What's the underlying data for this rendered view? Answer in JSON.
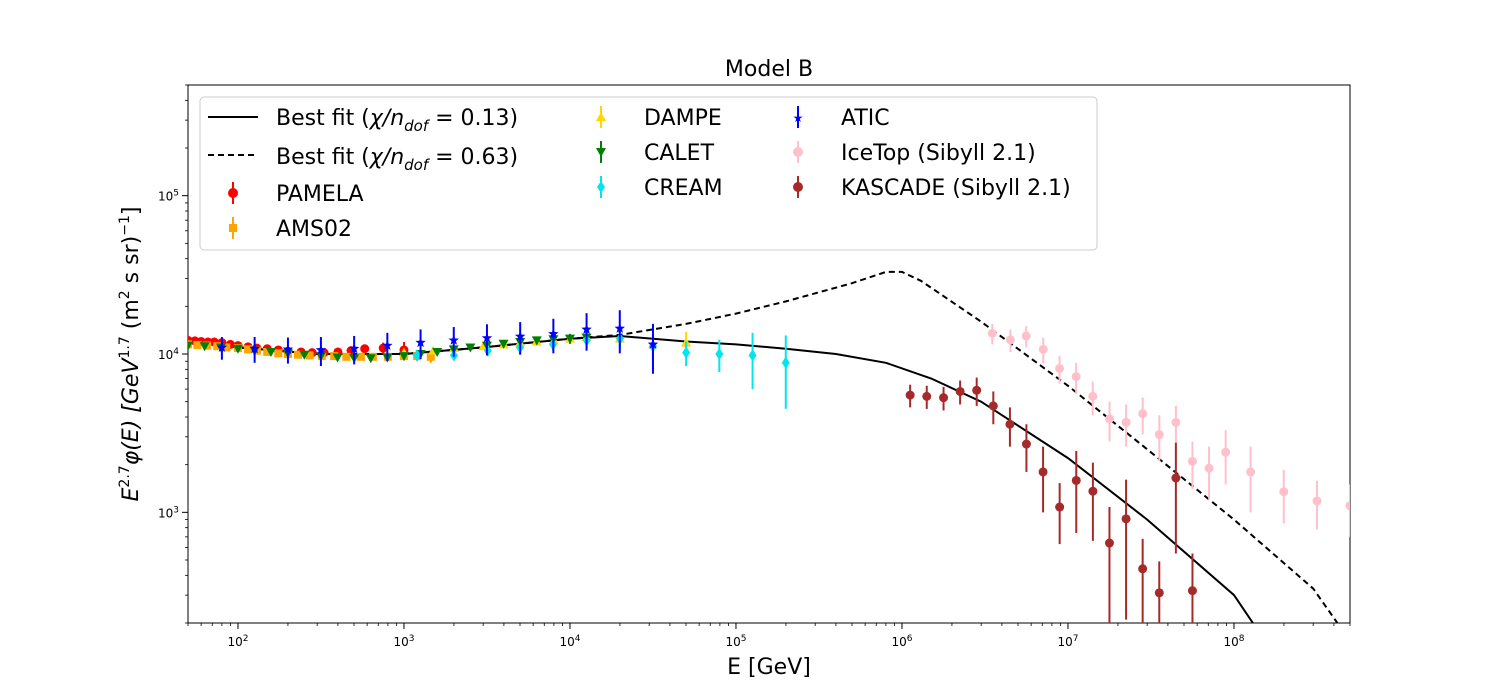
{
  "chart_data": {
    "type": "scatter",
    "title": "Model B",
    "xlabel": "E [GeV]",
    "ylabel": "E^{2.7}φ(E) [GeV^{1.7} (m² s sr)^{-1}]",
    "xscale": "log",
    "yscale": "log",
    "xlim": [
      50,
      500000000
    ],
    "ylim": [
      200,
      500000
    ],
    "x_tick_labels": [
      {
        "value": 100,
        "base": "10",
        "exp": "2"
      },
      {
        "value": 1000,
        "base": "10",
        "exp": "3"
      },
      {
        "value": 10000,
        "base": "10",
        "exp": "4"
      },
      {
        "value": 100000,
        "base": "10",
        "exp": "5"
      },
      {
        "value": 1000000,
        "base": "10",
        "exp": "6"
      },
      {
        "value": 10000000,
        "base": "10",
        "exp": "7"
      },
      {
        "value": 100000000,
        "base": "10",
        "exp": "8"
      }
    ],
    "y_tick_labels": [
      {
        "value": 1000,
        "base": "10",
        "exp": "3"
      },
      {
        "value": 10000,
        "base": "10",
        "exp": "4"
      },
      {
        "value": 100000,
        "base": "10",
        "exp": "5"
      }
    ],
    "legend_position": "upper-left, three columns",
    "curves": [
      {
        "name": "Best fit (χ/n_dof = 0.13)",
        "style": "solid",
        "color": "#000000",
        "x": [
          50,
          100,
          300,
          1000,
          3000,
          10000,
          20000,
          50000,
          100000,
          200000,
          400000,
          800000,
          1500000,
          3000000,
          10000000,
          30000000,
          100000000,
          130000000
        ],
        "y": [
          12000,
          11000,
          10000,
          10000,
          11000,
          12500,
          13000,
          12000,
          11500,
          10800,
          10000,
          8800,
          7000,
          5000,
          2200,
          900,
          300,
          200
        ]
      },
      {
        "name": "Best fit (χ/n_dof = 0.63)",
        "style": "dashed",
        "color": "#000000",
        "x": [
          50,
          100,
          300,
          1000,
          3000,
          10000,
          20000,
          50000,
          100000,
          200000,
          500000,
          800000,
          1000000,
          1300000,
          3000000,
          10000000,
          30000000,
          100000000,
          300000000,
          420000000
        ],
        "y": [
          12000,
          11000,
          10000,
          10000,
          11000,
          12500,
          13200,
          15500,
          18000,
          21500,
          28000,
          33000,
          33000,
          29000,
          16000,
          6300,
          2500,
          900,
          330,
          200
        ]
      }
    ],
    "series": [
      {
        "name": "PAMELA",
        "marker": "circle",
        "color": "#ff0000",
        "x": [
          50,
          55,
          60,
          66,
          72,
          80,
          90,
          100,
          115,
          130,
          150,
          175,
          200,
          240,
          280,
          330,
          400,
          480,
          580,
          750,
          1000
        ],
        "y": [
          12200,
          12100,
          12000,
          11900,
          11900,
          11800,
          11500,
          11300,
          11100,
          10900,
          10800,
          10600,
          10400,
          10300,
          10200,
          10200,
          10300,
          10500,
          10800,
          10900,
          10600
        ],
        "err": [
          500,
          500,
          500,
          500,
          500,
          500,
          500,
          500,
          500,
          500,
          500,
          500,
          500,
          500,
          500,
          500,
          500,
          600,
          700,
          900,
          1300
        ]
      },
      {
        "name": "AMS02",
        "marker": "square",
        "color": "#ffa500",
        "x": [
          50,
          57,
          65,
          75,
          85,
          100,
          115,
          130,
          150,
          175,
          200,
          230,
          270,
          320,
          380,
          450,
          550,
          650,
          800,
          1000,
          1200,
          1450
        ],
        "y": [
          11500,
          11400,
          11300,
          11200,
          11000,
          10900,
          10700,
          10500,
          10300,
          10100,
          10000,
          9900,
          9800,
          9700,
          9700,
          9600,
          9600,
          9600,
          9600,
          9700,
          9700,
          9600
        ],
        "err": [
          300,
          300,
          300,
          300,
          300,
          300,
          300,
          300,
          300,
          300,
          300,
          300,
          300,
          300,
          300,
          400,
          400,
          500,
          500,
          600,
          700,
          800
        ]
      },
      {
        "name": "DAMPE",
        "marker": "triangle-up",
        "color": "#ffd700",
        "x": [
          1000,
          1500,
          2000,
          3000,
          4000,
          5000,
          6300,
          8000,
          10000,
          12600,
          20000,
          31600,
          50100
        ],
        "y": [
          10200,
          10500,
          10900,
          11200,
          11500,
          11800,
          12000,
          12200,
          12500,
          12800,
          12500,
          11500,
          11800
        ],
        "err": [
          500,
          500,
          500,
          600,
          600,
          700,
          700,
          800,
          900,
          1000,
          1300,
          1600,
          2000
        ]
      },
      {
        "name": "CALET",
        "marker": "triangle-down",
        "color": "#008000",
        "x": [
          50,
          63,
          79,
          100,
          126,
          158,
          200,
          251,
          316,
          398,
          501,
          631,
          794,
          1000,
          1259,
          1585,
          1995,
          2512,
          3162,
          3981,
          5012,
          6310,
          7943,
          10000,
          12589
        ],
        "y": [
          11300,
          11200,
          11000,
          10800,
          10500,
          10300,
          10100,
          9900,
          9700,
          9500,
          9400,
          9400,
          9500,
          9700,
          10000,
          10300,
          10700,
          11000,
          11300,
          11600,
          11900,
          12200,
          12400,
          12500,
          12700
        ],
        "err": [
          300,
          300,
          300,
          300,
          300,
          300,
          300,
          300,
          300,
          300,
          300,
          300,
          300,
          300,
          400,
          400,
          400,
          500,
          500,
          600,
          600,
          700,
          800,
          900,
          1100
        ]
      },
      {
        "name": "CREAM",
        "marker": "diamond",
        "color": "#00e5ee",
        "x": [
          1200,
          2000,
          3200,
          5000,
          7900,
          12600,
          20000,
          31600,
          50100,
          79400,
          125900,
          199500
        ],
        "y": [
          9800,
          9800,
          10500,
          11000,
          11500,
          12200,
          12500,
          11200,
          10200,
          10000,
          9800,
          8800
        ],
        "err": [
          700,
          700,
          800,
          900,
          1000,
          1300,
          1700,
          2000,
          1800,
          2300,
          3800,
          4300
        ]
      },
      {
        "name": "ATIC",
        "marker": "star",
        "color": "#0000ff",
        "x": [
          80,
          126,
          200,
          316,
          501,
          794,
          1259,
          1995,
          3162,
          5012,
          7943,
          12589,
          19953,
          31623
        ],
        "y": [
          11000,
          10800,
          10700,
          10600,
          10800,
          11300,
          11800,
          12200,
          12600,
          12900,
          13400,
          14300,
          14500,
          11500
        ],
        "err": [
          1800,
          2000,
          2000,
          2200,
          2200,
          2300,
          2500,
          2600,
          2800,
          3000,
          3300,
          3800,
          4400,
          4000
        ]
      },
      {
        "name": "IceTop (Sibyll 2.1)",
        "marker": "circle",
        "color": "#ffc0cb",
        "x": [
          3500000,
          4500000,
          5600000,
          7100000,
          8900000,
          11200000,
          14100000,
          17800000,
          22400000,
          28200000,
          35500000,
          44700000,
          56200000,
          70800000,
          89100000,
          125900000,
          199500000,
          316200000,
          500000000
        ],
        "y": [
          13500,
          12300,
          13000,
          10700,
          8100,
          7200,
          5400,
          3900,
          3700,
          4200,
          3100,
          3700,
          2100,
          1900,
          2400,
          1800,
          1350,
          1180,
          1100
        ],
        "err": [
          2000,
          2000,
          2000,
          2000,
          1600,
          1600,
          1300,
          1100,
          1100,
          1100,
          1000,
          1000,
          700,
          700,
          900,
          800,
          500,
          400,
          400
        ]
      },
      {
        "name": "KASCADE (Sibyll 2.1)",
        "marker": "circle",
        "color": "#a52a2a",
        "x": [
          1120000,
          1410000,
          1780000,
          2240000,
          2820000,
          3550000,
          4470000,
          5620000,
          7080000,
          8910000,
          11220000,
          14130000,
          17780000,
          22390000,
          28180000,
          35480000,
          44670000,
          56230000
        ],
        "y": [
          5500,
          5400,
          5300,
          5800,
          5900,
          4700,
          3600,
          2700,
          1800,
          1080,
          1590,
          1360,
          640,
          910,
          440,
          310,
          1650,
          320
        ],
        "err": [
          900,
          900,
          900,
          1000,
          1200,
          1100,
          1000,
          900,
          800,
          450,
          850,
          700,
          440,
          700,
          240,
          180,
          1100,
          230
        ]
      }
    ]
  },
  "legend": {
    "col1": [
      {
        "key": "fit013",
        "prefix": "Best fit (",
        "sym": "χ/n",
        "sub": "dof",
        "suffix": " = 0.13)"
      },
      {
        "key": "fit063",
        "prefix": "Best fit (",
        "sym": "χ/n",
        "sub": "dof",
        "suffix": " = 0.63)"
      },
      {
        "key": "pamela",
        "label": "PAMELA"
      },
      {
        "key": "ams02",
        "label": "AMS02"
      }
    ],
    "col2": [
      {
        "key": "dampe",
        "label": "DAMPE"
      },
      {
        "key": "calet",
        "label": "CALET"
      },
      {
        "key": "cream",
        "label": "CREAM"
      }
    ],
    "col3": [
      {
        "key": "atic",
        "label": "ATIC"
      },
      {
        "key": "icetop",
        "label": "IceTop (Sibyll 2.1)"
      },
      {
        "key": "kascade",
        "label": "KASCADE (Sibyll 2.1)"
      }
    ]
  },
  "ylabel_parts": {
    "E": "E",
    "e_exp": "2.7",
    "phi": "φ(E) [GeV",
    "gev_exp": "1.7",
    "unit": " (m",
    "m_exp": "2",
    "unit2": " s sr)",
    "unit_exp": "−1",
    "close": "]"
  }
}
